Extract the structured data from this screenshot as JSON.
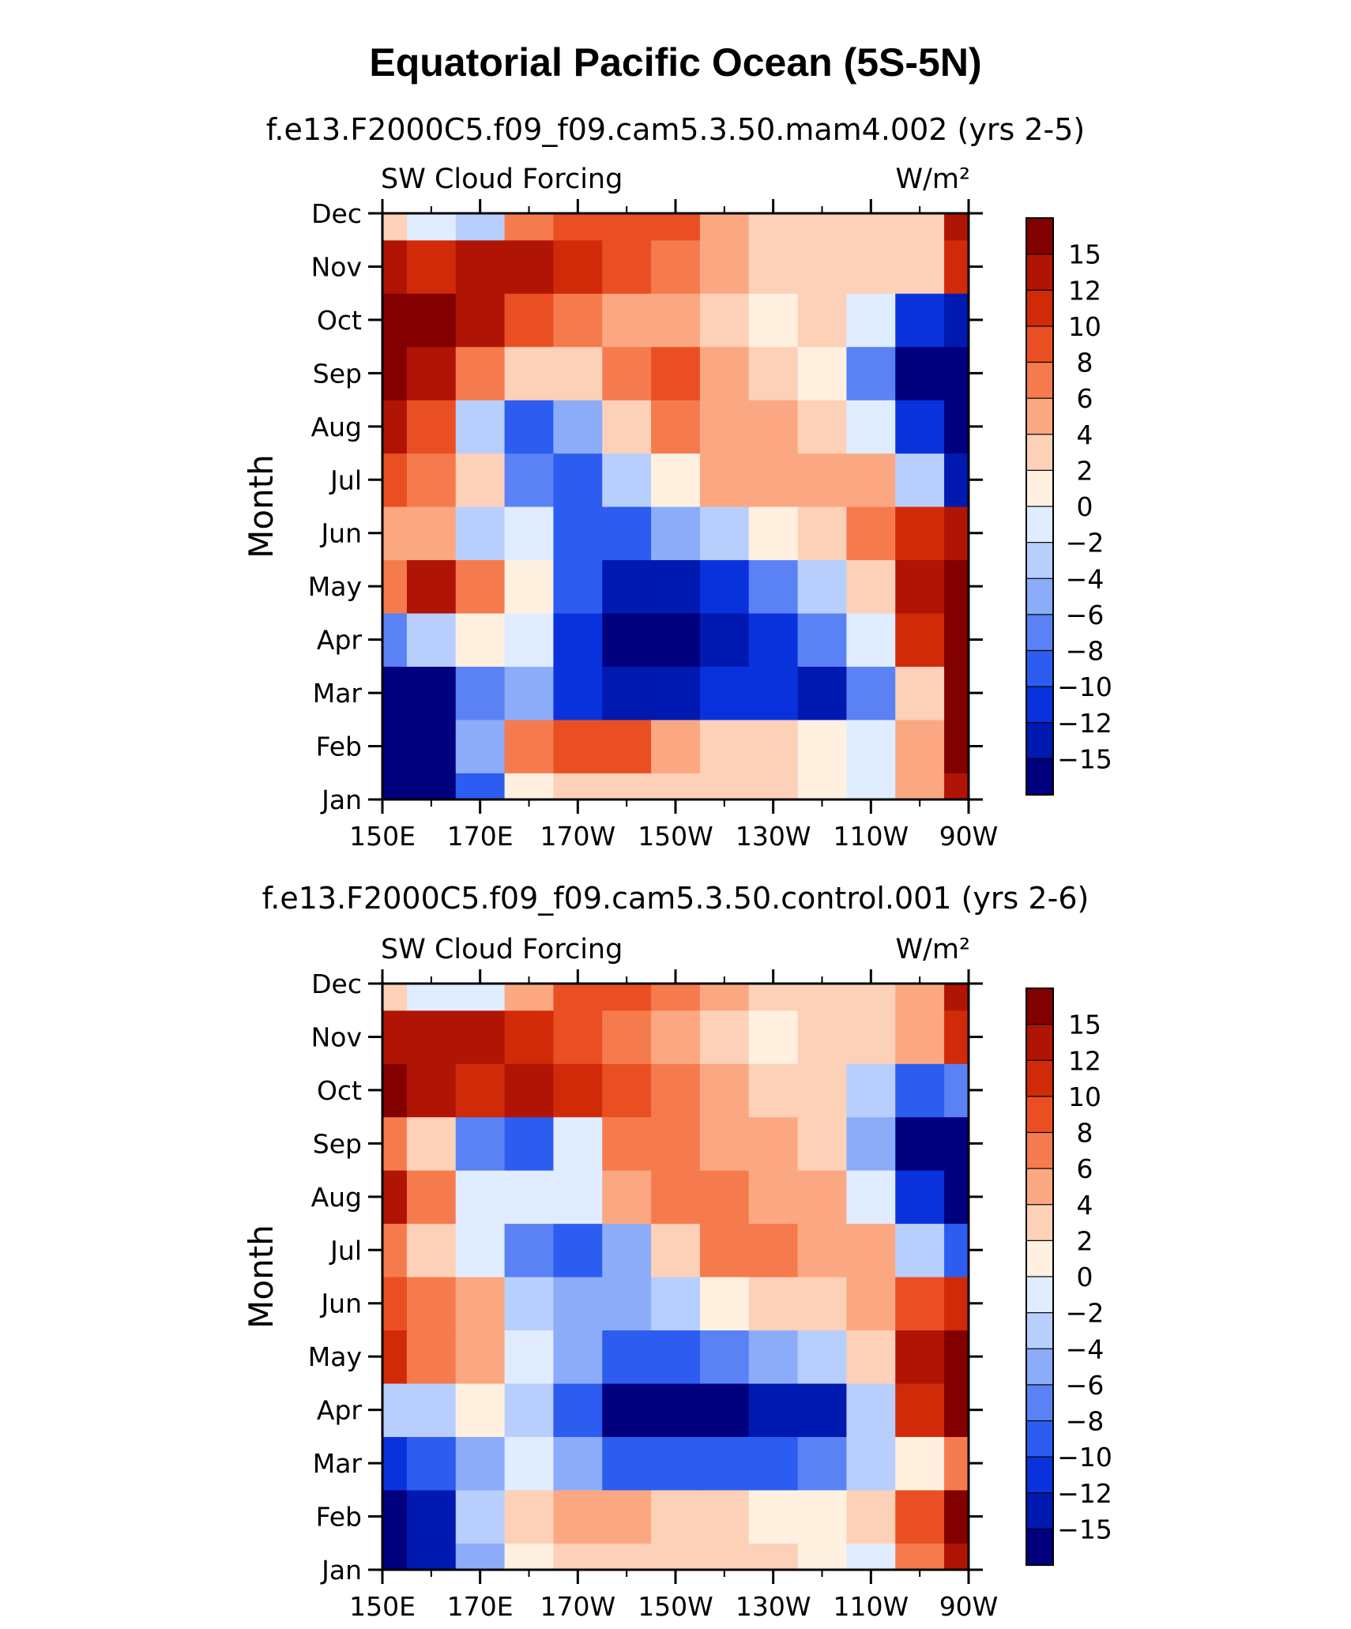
{
  "figure_title": "Equatorial Pacific Ocean (5S-5N)",
  "colorbar": {
    "levels": [
      -15,
      -12,
      -10,
      -8,
      -6,
      -4,
      -2,
      0,
      2,
      4,
      6,
      8,
      10,
      12,
      15
    ],
    "colors": [
      "#00007f",
      "#0019b0",
      "#0a32dc",
      "#2d5cf0",
      "#5a82f5",
      "#8cacfa",
      "#b8cffd",
      "#e0ecff",
      "#fff0e0",
      "#fdd0b8",
      "#fba882",
      "#f57b4e",
      "#ea4f24",
      "#d02a08",
      "#b01404",
      "#820000"
    ]
  },
  "chart_data": [
    {
      "type": "heatmap",
      "title": "f.e13.F2000C5.f09_f09.cam5.3.50.mam4.002 (yrs 2-5)",
      "variable_label": "SW Cloud Forcing",
      "units_label": "W/m²",
      "ylabel": "Month",
      "x_tick_labels": [
        "150E",
        "170E",
        "170W",
        "150W",
        "130W",
        "110W",
        "90W"
      ],
      "y_tick_labels": [
        "Jan",
        "Feb",
        "Mar",
        "Apr",
        "May",
        "Jun",
        "Jul",
        "Aug",
        "Sep",
        "Oct",
        "Nov",
        "Dec"
      ],
      "x_columns": [
        150,
        160,
        170,
        180,
        190,
        200,
        210,
        220,
        230,
        240,
        250,
        260,
        270
      ],
      "rows": [
        {
          "month": "Jan",
          "values": [
            -16,
            -16,
            -10,
            0,
            3,
            3,
            3,
            2,
            2,
            1,
            -2,
            5,
            14
          ]
        },
        {
          "month": "Feb",
          "values": [
            -16,
            -16,
            -6,
            6,
            9,
            8,
            5,
            3,
            2,
            0,
            -2,
            5,
            15
          ]
        },
        {
          "month": "Mar",
          "values": [
            -16,
            -16,
            -8,
            -6,
            -11,
            -14,
            -13,
            -11,
            -11,
            -13,
            -8,
            3,
            15
          ]
        },
        {
          "month": "Apr",
          "values": [
            -8,
            -4,
            1,
            -1,
            -12,
            -16,
            -16,
            -13,
            -11,
            -8,
            -2,
            10,
            17
          ]
        },
        {
          "month": "May",
          "values": [
            6,
            12,
            6,
            1,
            -9,
            -13,
            -13,
            -12,
            -8,
            -3,
            2,
            12,
            17
          ]
        },
        {
          "month": "Jun",
          "values": [
            4,
            4,
            -3,
            -2,
            -10,
            -9,
            -6,
            -3,
            0,
            2,
            6,
            10,
            14
          ]
        },
        {
          "month": "Jul",
          "values": [
            8,
            6,
            2,
            -7,
            -9,
            -4,
            0,
            4,
            5,
            5,
            4,
            -4,
            -14
          ]
        },
        {
          "month": "Aug",
          "values": [
            13,
            8,
            -3,
            -10,
            -5,
            2,
            6,
            5,
            4,
            3,
            -2,
            -12,
            -16
          ]
        },
        {
          "month": "Sep",
          "values": [
            17,
            14,
            6,
            2,
            3,
            6,
            8,
            5,
            2,
            1,
            -8,
            -16,
            -16
          ]
        },
        {
          "month": "Oct",
          "values": [
            17,
            17,
            12,
            9,
            6,
            5,
            4,
            3,
            1,
            2,
            -2,
            -12,
            -14
          ]
        },
        {
          "month": "Nov",
          "values": [
            12,
            10,
            12,
            12,
            10,
            8,
            6,
            4,
            2,
            3,
            3,
            2,
            10
          ]
        },
        {
          "month": "Dec",
          "values": [
            2,
            -2,
            -4,
            6,
            8,
            9,
            8,
            5,
            2,
            3,
            2,
            3,
            12
          ]
        }
      ],
      "colorbar_tick_labels": [
        "15",
        "12",
        "10",
        "8",
        "6",
        "4",
        "2",
        "0",
        "−2",
        "−4",
        "−6",
        "−8",
        "−10",
        "−12",
        "−15"
      ]
    },
    {
      "type": "heatmap",
      "title": "f.e13.F2000C5.f09_f09.cam5.3.50.control.001 (yrs 2-6)",
      "variable_label": "SW Cloud Forcing",
      "units_label": "W/m²",
      "ylabel": "Month",
      "x_tick_labels": [
        "150E",
        "170E",
        "170W",
        "150W",
        "130W",
        "110W",
        "90W"
      ],
      "y_tick_labels": [
        "Jan",
        "Feb",
        "Mar",
        "Apr",
        "May",
        "Jun",
        "Jul",
        "Aug",
        "Sep",
        "Oct",
        "Nov",
        "Dec"
      ],
      "x_columns": [
        150,
        160,
        170,
        180,
        190,
        200,
        210,
        220,
        230,
        240,
        250,
        260,
        270
      ],
      "rows": [
        {
          "month": "Jan",
          "values": [
            -16,
            -14,
            -6,
            1,
            3,
            3,
            3,
            2,
            2,
            1,
            -2,
            6,
            14
          ]
        },
        {
          "month": "Feb",
          "values": [
            -16,
            -13,
            -4,
            2,
            4,
            4,
            3,
            2,
            1,
            0,
            2,
            8,
            16
          ]
        },
        {
          "month": "Mar",
          "values": [
            -12,
            -10,
            -5,
            -2,
            -6,
            -10,
            -10,
            -10,
            -9,
            -7,
            -3,
            0,
            6
          ]
        },
        {
          "month": "Apr",
          "values": [
            -4,
            -3,
            1,
            -4,
            -10,
            -16,
            -16,
            -16,
            -15,
            -13,
            -3,
            10,
            17
          ]
        },
        {
          "month": "May",
          "values": [
            10,
            6,
            5,
            -2,
            -6,
            -10,
            -10,
            -8,
            -6,
            -3,
            2,
            12,
            17
          ]
        },
        {
          "month": "Jun",
          "values": [
            8,
            6,
            4,
            -4,
            -6,
            -6,
            -3,
            0,
            2,
            3,
            5,
            8,
            10
          ]
        },
        {
          "month": "Jul",
          "values": [
            6,
            2,
            -1,
            -7,
            -10,
            -6,
            2,
            6,
            6,
            5,
            4,
            -4,
            -10
          ]
        },
        {
          "month": "Aug",
          "values": [
            12,
            6,
            -1,
            -2,
            -2,
            4,
            6,
            6,
            5,
            4,
            -2,
            -12,
            -16
          ]
        },
        {
          "month": "Sep",
          "values": [
            6,
            2,
            -7,
            -10,
            -1,
            6,
            7,
            5,
            4,
            3,
            -6,
            -16,
            -16
          ]
        },
        {
          "month": "Oct",
          "values": [
            16,
            14,
            10,
            12,
            10,
            8,
            6,
            4,
            3,
            3,
            -3,
            -10,
            -8
          ]
        },
        {
          "month": "Nov",
          "values": [
            14,
            12,
            13,
            11,
            9,
            7,
            5,
            3,
            1,
            2,
            3,
            4,
            10
          ]
        },
        {
          "month": "Dec",
          "values": [
            3,
            -2,
            -2,
            4,
            8,
            9,
            7,
            5,
            3,
            3,
            2,
            4,
            12
          ]
        }
      ],
      "colorbar_tick_labels": [
        "15",
        "12",
        "10",
        "8",
        "6",
        "4",
        "2",
        "0",
        "−2",
        "−4",
        "−6",
        "−8",
        "−10",
        "−12",
        "−15"
      ]
    }
  ]
}
